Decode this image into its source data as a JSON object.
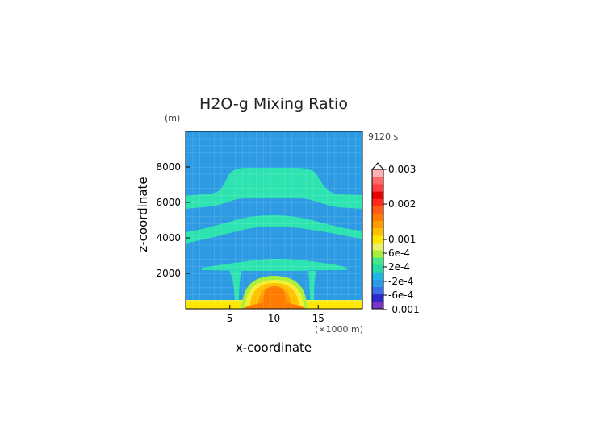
{
  "chart_data": {
    "type": "heatmap",
    "title": "H2O-g Mixing Ratio",
    "time_label": "9120 s",
    "xlabel": "x-coordinate",
    "ylabel": "z-coordinate",
    "x_unit": "(×1000 m)",
    "y_unit": "(m)",
    "xlim": [
      0,
      20
    ],
    "ylim": [
      0,
      10000
    ],
    "xticks": [
      5,
      10,
      15
    ],
    "yticks": [
      2000,
      4000,
      6000,
      8000
    ],
    "grid": true,
    "colorbar": {
      "placement": "right",
      "labels": [
        "0.003",
        "0.002",
        "0.001",
        "6e-4",
        "2e-4",
        "-2e-4",
        "-6e-4",
        "-0.001"
      ],
      "colors": [
        "#7b33c8",
        "#2b2bd0",
        "#3c6ee8",
        "#2d9be3",
        "#21b5e6",
        "#27d9a6",
        "#44e888",
        "#a8ee3a",
        "#eef06a",
        "#ffe600",
        "#ffc000",
        "#ff9c00",
        "#ff7a00",
        "#ff5a16",
        "#ff2a1a",
        "#e60000",
        "#ff4040",
        "#ff6868",
        "#ffb0b0"
      ]
    },
    "regions": [
      {
        "name": "background",
        "value": "-2e-4 to 2e-4",
        "color": "#2d9be3"
      },
      {
        "name": "layer-upper",
        "z_range": [
          6000,
          7800
        ],
        "value": "2e-4 to 6e-4",
        "color": "#2de3b0"
      },
      {
        "name": "layer-middle",
        "z_range": [
          4200,
          5300
        ],
        "value": "2e-4 to 6e-4",
        "color": "#2de3b0"
      },
      {
        "name": "layer-lower",
        "z_range": [
          2200,
          2900
        ],
        "value": "2e-4 to 6e-4",
        "color": "#2de3b0"
      },
      {
        "name": "surface-layer",
        "z_range": [
          0,
          400
        ],
        "value": "6e-4 to 0.001",
        "color": "#f2ef30"
      },
      {
        "name": "central-plume",
        "x_center": 10,
        "z_range": [
          0,
          1700
        ],
        "value": "0.001 to 0.002",
        "color": "#ff6b14"
      }
    ]
  }
}
